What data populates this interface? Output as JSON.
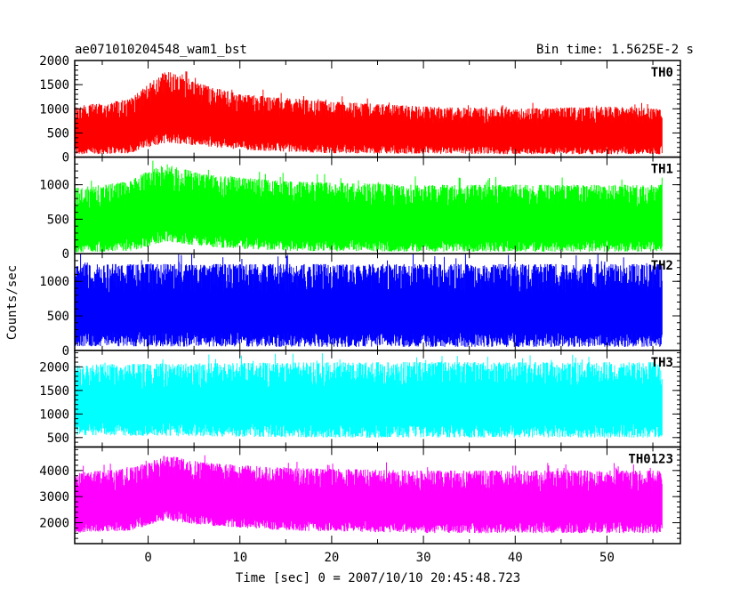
{
  "header": {
    "title": "ae071010204548_wam1_bst",
    "bin_time": "Bin time: 1.5625E-2 s"
  },
  "chart_data": {
    "type": "line",
    "xlabel": "Time [sec] 0 = 2007/10/10 20:45:48.723",
    "ylabel": "Counts/sec",
    "xlim": [
      -8,
      58
    ],
    "xticks": [
      0,
      10,
      20,
      30,
      40,
      50
    ],
    "x_data_range": [
      -8,
      56
    ],
    "panels": [
      {
        "name": "TH0",
        "color": "#ff0000",
        "ylim": [
          0,
          2000
        ],
        "yticks": [
          0,
          500,
          1000,
          1500,
          2000
        ],
        "profile": [
          {
            "t": -8,
            "lo": 50,
            "hi": 1050
          },
          {
            "t": -2,
            "lo": 80,
            "hi": 1200
          },
          {
            "t": 0,
            "lo": 200,
            "hi": 1500
          },
          {
            "t": 2,
            "lo": 300,
            "hi": 1800
          },
          {
            "t": 5,
            "lo": 250,
            "hi": 1550
          },
          {
            "t": 10,
            "lo": 150,
            "hi": 1300
          },
          {
            "t": 20,
            "lo": 80,
            "hi": 1150
          },
          {
            "t": 30,
            "lo": 70,
            "hi": 1050
          },
          {
            "t": 40,
            "lo": 60,
            "hi": 1000
          },
          {
            "t": 50,
            "lo": 60,
            "hi": 1050
          },
          {
            "t": 56,
            "lo": 60,
            "hi": 1000
          }
        ]
      },
      {
        "name": "TH1",
        "color": "#00ff00",
        "ylim": [
          0,
          1400
        ],
        "yticks": [
          0,
          500,
          1000
        ],
        "profile": [
          {
            "t": -8,
            "lo": 20,
            "hi": 950
          },
          {
            "t": -2,
            "lo": 40,
            "hi": 1050
          },
          {
            "t": 0,
            "lo": 100,
            "hi": 1200
          },
          {
            "t": 2,
            "lo": 180,
            "hi": 1300
          },
          {
            "t": 6,
            "lo": 100,
            "hi": 1150
          },
          {
            "t": 15,
            "lo": 40,
            "hi": 1050
          },
          {
            "t": 30,
            "lo": 30,
            "hi": 1000
          },
          {
            "t": 45,
            "lo": 30,
            "hi": 1000
          },
          {
            "t": 56,
            "lo": 30,
            "hi": 1000
          }
        ]
      },
      {
        "name": "TH2",
        "color": "#0000ff",
        "ylim": [
          0,
          1400
        ],
        "yticks": [
          0,
          500,
          1000
        ],
        "profile": [
          {
            "t": -8,
            "lo": 60,
            "hi": 1250
          },
          {
            "t": 20,
            "lo": 50,
            "hi": 1250
          },
          {
            "t": 40,
            "lo": 50,
            "hi": 1250
          },
          {
            "t": 56,
            "lo": 50,
            "hi": 1250
          }
        ]
      },
      {
        "name": "TH3",
        "color": "#00ffff",
        "ylim": [
          300,
          2350
        ],
        "yticks": [
          500,
          1000,
          1500,
          2000
        ],
        "profile": [
          {
            "t": -8,
            "lo": 550,
            "hi": 2050
          },
          {
            "t": 20,
            "lo": 500,
            "hi": 2100
          },
          {
            "t": 40,
            "lo": 500,
            "hi": 2100
          },
          {
            "t": 56,
            "lo": 500,
            "hi": 2100
          }
        ]
      },
      {
        "name": "TH0123",
        "color": "#ff00ff",
        "ylim": [
          1200,
          4900
        ],
        "yticks": [
          2000,
          3000,
          4000
        ],
        "profile": [
          {
            "t": -8,
            "lo": 1600,
            "hi": 3900
          },
          {
            "t": -2,
            "lo": 1700,
            "hi": 4100
          },
          {
            "t": 0,
            "lo": 1900,
            "hi": 4300
          },
          {
            "t": 2,
            "lo": 2100,
            "hi": 4600
          },
          {
            "t": 6,
            "lo": 1900,
            "hi": 4300
          },
          {
            "t": 15,
            "lo": 1700,
            "hi": 4100
          },
          {
            "t": 30,
            "lo": 1600,
            "hi": 4000
          },
          {
            "t": 45,
            "lo": 1600,
            "hi": 4000
          },
          {
            "t": 56,
            "lo": 1600,
            "hi": 4000
          }
        ]
      }
    ]
  }
}
